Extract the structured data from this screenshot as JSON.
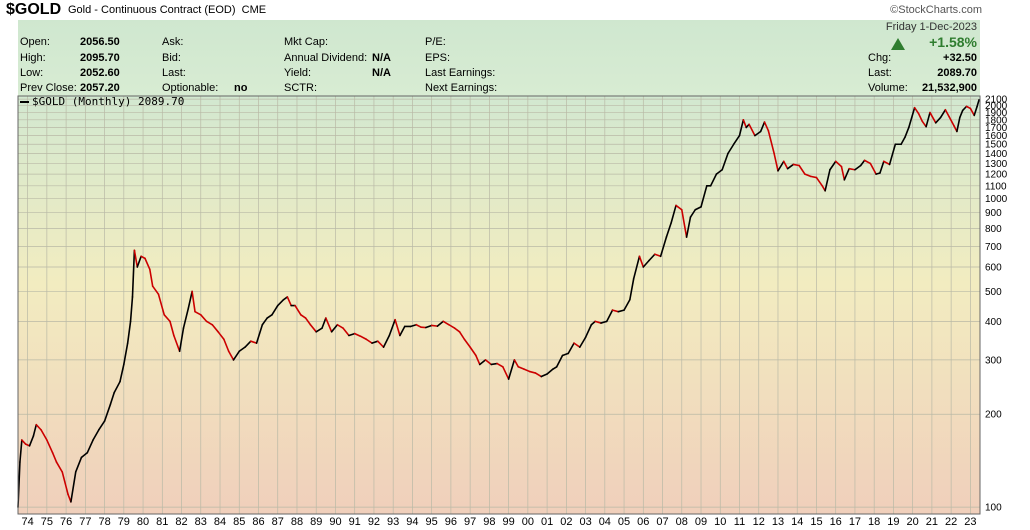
{
  "header": {
    "symbol": "$GOLD",
    "name": "Gold - Continuous Contract (EOD)",
    "exchange": "CME",
    "copyright": "©StockCharts.com"
  },
  "info": {
    "open_label": "Open:",
    "open": "2056.50",
    "high_label": "High:",
    "high": "2095.70",
    "low_label": "Low:",
    "low": "2052.60",
    "prev_label": "Prev Close:",
    "prev": "2057.20",
    "ask_label": "Ask:",
    "bid_label": "Bid:",
    "last_label": "Last:",
    "optionable_label": "Optionable:",
    "optionable": "no",
    "mktcap_label": "Mkt Cap:",
    "dividend_label": "Annual Dividend:",
    "dividend": "N/A",
    "yield_label": "Yield:",
    "yield": "N/A",
    "sctr_label": "SCTR:",
    "pe_label": "P/E:",
    "eps_label": "EPS:",
    "lastearn_label": "Last Earnings:",
    "nextearn_label": "Next Earnings:",
    "date": "Friday  1-Dec-2023",
    "pct": "+1.58%",
    "chg_label": "Chg:",
    "chg": "+32.50",
    "last2_label": "Last:",
    "last2": "2089.70",
    "volume_label": "Volume:",
    "volume": "21,532,900"
  },
  "legend": {
    "label": "$GOLD (Monthly) 2089.70"
  },
  "colors": {
    "line": "#000000",
    "down": "#cc0000",
    "bg_top": "#d2e8d0",
    "bg_mid": "#f2ecc0",
    "bg_bottom": "#f0cfbb"
  },
  "chart_data": {
    "type": "line",
    "scale": "log",
    "ylim": [
      95,
      2150
    ],
    "xlim": [
      1974.0,
      2024.0
    ],
    "yticks": [
      100,
      200,
      300,
      400,
      500,
      600,
      700,
      800,
      900,
      1000,
      1100,
      1200,
      1300,
      1400,
      1500,
      1600,
      1700,
      1800,
      1900,
      2000,
      2100
    ],
    "ytick_labels": [
      "100",
      "200",
      "300",
      "400",
      "500",
      "600",
      "700",
      "800",
      "900",
      "1000",
      "1100",
      "1200",
      "1300",
      "1400",
      "1500",
      "1600",
      "1700",
      "1800",
      "1900",
      "2000",
      "2100"
    ],
    "xtick_labels": [
      "74",
      "75",
      "76",
      "77",
      "78",
      "79",
      "80",
      "81",
      "82",
      "83",
      "84",
      "85",
      "86",
      "87",
      "88",
      "89",
      "90",
      "91",
      "92",
      "93",
      "94",
      "95",
      "96",
      "97",
      "98",
      "99",
      "00",
      "01",
      "02",
      "03",
      "04",
      "05",
      "06",
      "07",
      "08",
      "09",
      "10",
      "11",
      "12",
      "13",
      "14",
      "15",
      "16",
      "17",
      "18",
      "19",
      "20",
      "21",
      "22",
      "23"
    ],
    "grid": true,
    "series": [
      {
        "name": "$GOLD",
        "points": [
          [
            1974.0,
            100
          ],
          [
            1974.1,
            140
          ],
          [
            1974.2,
            165
          ],
          [
            1974.4,
            160
          ],
          [
            1974.6,
            158
          ],
          [
            1974.8,
            170
          ],
          [
            1974.95,
            185
          ],
          [
            1975.2,
            178
          ],
          [
            1975.5,
            165
          ],
          [
            1975.8,
            150
          ],
          [
            1976.0,
            140
          ],
          [
            1976.3,
            130
          ],
          [
            1976.6,
            110
          ],
          [
            1976.75,
            104
          ],
          [
            1977.0,
            130
          ],
          [
            1977.3,
            145
          ],
          [
            1977.6,
            150
          ],
          [
            1977.9,
            165
          ],
          [
            1978.2,
            178
          ],
          [
            1978.5,
            190
          ],
          [
            1978.8,
            215
          ],
          [
            1979.0,
            235
          ],
          [
            1979.3,
            255
          ],
          [
            1979.5,
            290
          ],
          [
            1979.7,
            340
          ],
          [
            1979.85,
            400
          ],
          [
            1979.95,
            480
          ],
          [
            1980.05,
            680
          ],
          [
            1980.2,
            600
          ],
          [
            1980.4,
            650
          ],
          [
            1980.6,
            640
          ],
          [
            1980.85,
            590
          ],
          [
            1981.0,
            520
          ],
          [
            1981.3,
            490
          ],
          [
            1981.6,
            420
          ],
          [
            1981.9,
            400
          ],
          [
            1982.1,
            360
          ],
          [
            1982.4,
            320
          ],
          [
            1982.6,
            380
          ],
          [
            1982.85,
            440
          ],
          [
            1983.05,
            500
          ],
          [
            1983.2,
            430
          ],
          [
            1983.5,
            420
          ],
          [
            1983.8,
            400
          ],
          [
            1984.1,
            390
          ],
          [
            1984.4,
            370
          ],
          [
            1984.7,
            350
          ],
          [
            1984.95,
            320
          ],
          [
            1985.2,
            300
          ],
          [
            1985.5,
            320
          ],
          [
            1985.8,
            330
          ],
          [
            1986.1,
            345
          ],
          [
            1986.4,
            340
          ],
          [
            1986.7,
            390
          ],
          [
            1986.95,
            410
          ],
          [
            1987.2,
            420
          ],
          [
            1987.5,
            450
          ],
          [
            1987.8,
            470
          ],
          [
            1988.0,
            480
          ],
          [
            1988.2,
            450
          ],
          [
            1988.4,
            450
          ],
          [
            1988.7,
            420
          ],
          [
            1988.95,
            410
          ],
          [
            1989.2,
            390
          ],
          [
            1989.5,
            370
          ],
          [
            1989.8,
            380
          ],
          [
            1990.0,
            410
          ],
          [
            1990.3,
            370
          ],
          [
            1990.6,
            390
          ],
          [
            1990.9,
            380
          ],
          [
            1991.2,
            360
          ],
          [
            1991.5,
            365
          ],
          [
            1991.8,
            358
          ],
          [
            1992.1,
            350
          ],
          [
            1992.4,
            340
          ],
          [
            1992.7,
            345
          ],
          [
            1993.0,
            330
          ],
          [
            1993.3,
            360
          ],
          [
            1993.6,
            405
          ],
          [
            1993.85,
            360
          ],
          [
            1994.1,
            385
          ],
          [
            1994.4,
            385
          ],
          [
            1994.7,
            390
          ],
          [
            1994.95,
            383
          ],
          [
            1995.2,
            382
          ],
          [
            1995.5,
            388
          ],
          [
            1995.8,
            386
          ],
          [
            1996.1,
            400
          ],
          [
            1996.4,
            390
          ],
          [
            1996.7,
            380
          ],
          [
            1996.95,
            370
          ],
          [
            1997.2,
            350
          ],
          [
            1997.5,
            330
          ],
          [
            1997.8,
            310
          ],
          [
            1998.0,
            290
          ],
          [
            1998.3,
            300
          ],
          [
            1998.6,
            290
          ],
          [
            1998.9,
            292
          ],
          [
            1999.2,
            285
          ],
          [
            1999.5,
            260
          ],
          [
            1999.8,
            300
          ],
          [
            2000.0,
            285
          ],
          [
            2000.3,
            280
          ],
          [
            2000.6,
            275
          ],
          [
            2000.9,
            272
          ],
          [
            2001.2,
            265
          ],
          [
            2001.5,
            270
          ],
          [
            2001.8,
            280
          ],
          [
            2002.0,
            285
          ],
          [
            2002.3,
            310
          ],
          [
            2002.6,
            315
          ],
          [
            2002.9,
            340
          ],
          [
            2003.2,
            330
          ],
          [
            2003.5,
            355
          ],
          [
            2003.8,
            390
          ],
          [
            2004.0,
            400
          ],
          [
            2004.3,
            395
          ],
          [
            2004.6,
            400
          ],
          [
            2004.9,
            435
          ],
          [
            2005.2,
            430
          ],
          [
            2005.5,
            435
          ],
          [
            2005.8,
            470
          ],
          [
            2006.0,
            550
          ],
          [
            2006.3,
            650
          ],
          [
            2006.5,
            600
          ],
          [
            2006.8,
            630
          ],
          [
            2007.1,
            660
          ],
          [
            2007.4,
            650
          ],
          [
            2007.7,
            750
          ],
          [
            2007.95,
            835
          ],
          [
            2008.2,
            950
          ],
          [
            2008.5,
            920
          ],
          [
            2008.75,
            750
          ],
          [
            2008.95,
            870
          ],
          [
            2009.2,
            920
          ],
          [
            2009.5,
            940
          ],
          [
            2009.8,
            1100
          ],
          [
            2010.0,
            1100
          ],
          [
            2010.3,
            1200
          ],
          [
            2010.6,
            1240
          ],
          [
            2010.9,
            1400
          ],
          [
            2011.2,
            1500
          ],
          [
            2011.5,
            1600
          ],
          [
            2011.7,
            1800
          ],
          [
            2011.85,
            1700
          ],
          [
            2012.0,
            1740
          ],
          [
            2012.3,
            1600
          ],
          [
            2012.6,
            1650
          ],
          [
            2012.8,
            1770
          ],
          [
            2013.0,
            1660
          ],
          [
            2013.3,
            1400
          ],
          [
            2013.5,
            1230
          ],
          [
            2013.8,
            1320
          ],
          [
            2014.0,
            1250
          ],
          [
            2014.3,
            1290
          ],
          [
            2014.6,
            1280
          ],
          [
            2014.9,
            1200
          ],
          [
            2015.2,
            1180
          ],
          [
            2015.5,
            1170
          ],
          [
            2015.8,
            1100
          ],
          [
            2015.95,
            1060
          ],
          [
            2016.2,
            1240
          ],
          [
            2016.5,
            1320
          ],
          [
            2016.8,
            1270
          ],
          [
            2016.95,
            1150
          ],
          [
            2017.2,
            1250
          ],
          [
            2017.5,
            1240
          ],
          [
            2017.8,
            1280
          ],
          [
            2018.0,
            1330
          ],
          [
            2018.3,
            1300
          ],
          [
            2018.6,
            1200
          ],
          [
            2018.8,
            1210
          ],
          [
            2019.0,
            1320
          ],
          [
            2019.3,
            1290
          ],
          [
            2019.6,
            1500
          ],
          [
            2019.9,
            1500
          ],
          [
            2020.1,
            1580
          ],
          [
            2020.3,
            1700
          ],
          [
            2020.6,
            1970
          ],
          [
            2020.8,
            1890
          ],
          [
            2021.0,
            1780
          ],
          [
            2021.2,
            1710
          ],
          [
            2021.4,
            1900
          ],
          [
            2021.7,
            1760
          ],
          [
            2021.95,
            1830
          ],
          [
            2022.2,
            1940
          ],
          [
            2022.4,
            1840
          ],
          [
            2022.65,
            1720
          ],
          [
            2022.8,
            1650
          ],
          [
            2022.95,
            1830
          ],
          [
            2023.1,
            1930
          ],
          [
            2023.3,
            1990
          ],
          [
            2023.5,
            1960
          ],
          [
            2023.7,
            1860
          ],
          [
            2023.85,
            1990
          ],
          [
            2023.95,
            2089.7
          ]
        ]
      }
    ]
  }
}
